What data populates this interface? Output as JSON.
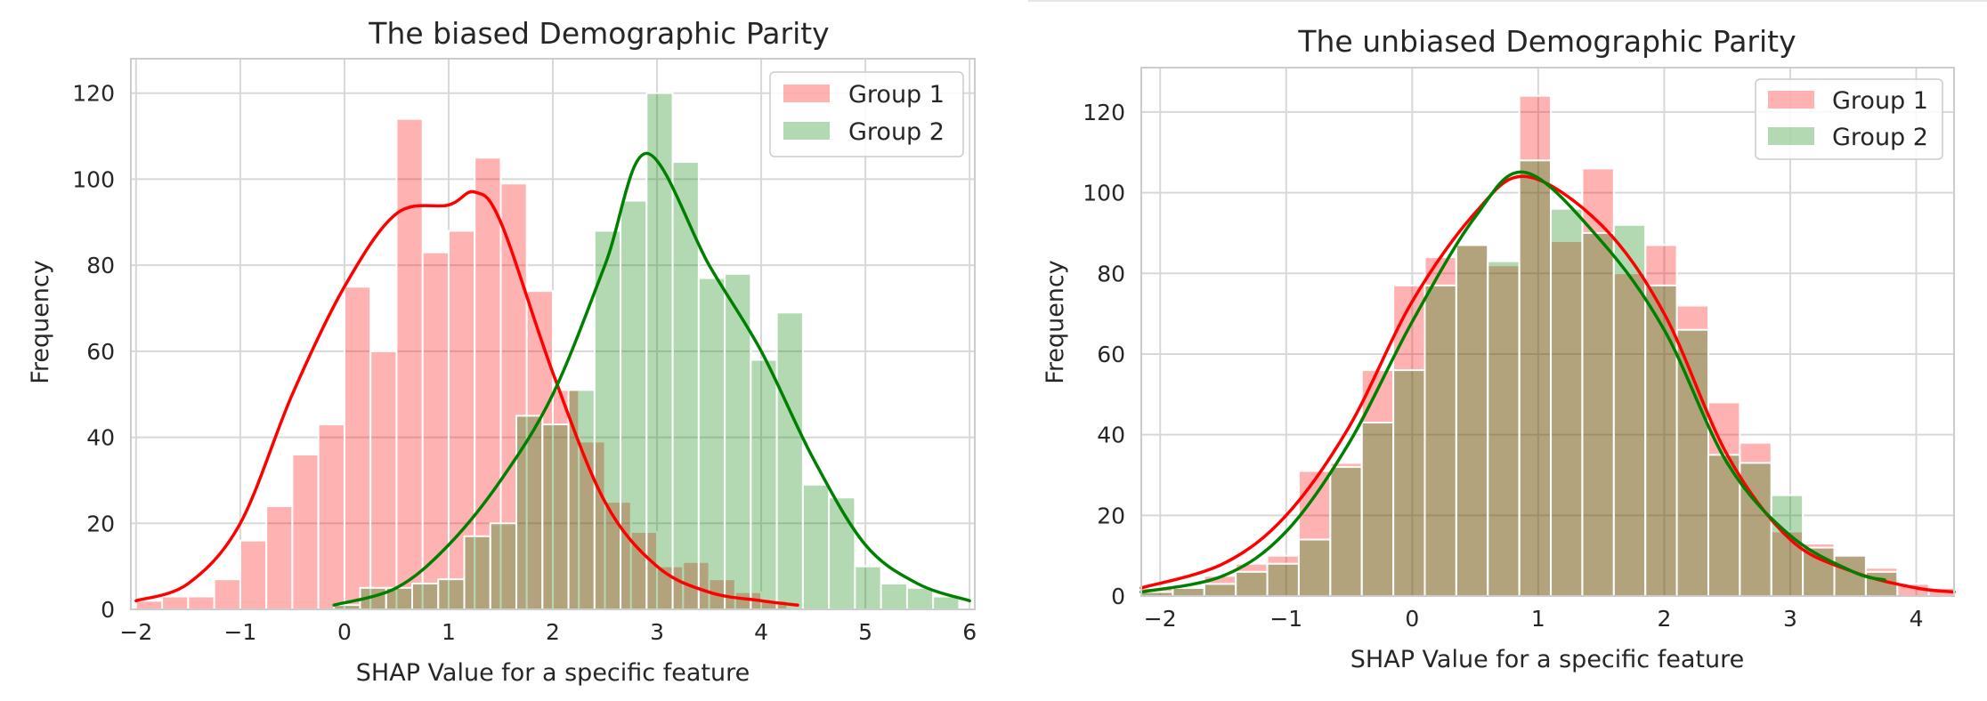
{
  "colors": {
    "group1": "#ff0000",
    "group2": "#008000",
    "group1_fill": "rgba(255,0,0,0.30)",
    "group2_fill": "rgba(0,128,0,0.30)",
    "grid": "#d8d8d8",
    "frame": "#cccccc"
  },
  "chart_data": [
    {
      "type": "histogram",
      "title": "The biased Demographic Parity",
      "xlabel": "SHAP Value for a specific feature",
      "ylabel": "Frequency",
      "xlim": [
        -2.05,
        6.05
      ],
      "ylim": [
        0,
        128
      ],
      "xticks": [
        -2,
        -1,
        0,
        1,
        2,
        3,
        4,
        5,
        6
      ],
      "yticks": [
        0,
        20,
        40,
        60,
        80,
        100,
        120
      ],
      "xtick_labels": [
        "−2",
        "−1",
        "0",
        "1",
        "2",
        "3",
        "4",
        "5",
        "6"
      ],
      "ytick_labels": [
        "0",
        "20",
        "40",
        "60",
        "80",
        "100",
        "120"
      ],
      "grid": true,
      "legend_position": "top-right",
      "bin_width": 0.25,
      "series": [
        {
          "name": "Group 1",
          "color": "#ff0000",
          "bin_starts": [
            -2.0,
            -1.75,
            -1.5,
            -1.25,
            -1.0,
            -0.75,
            -0.5,
            -0.25,
            0.0,
            0.25,
            0.5,
            0.75,
            1.0,
            1.25,
            1.5,
            1.75,
            2.0,
            2.25,
            2.5,
            2.75,
            3.0,
            3.25,
            3.5,
            3.75,
            4.0
          ],
          "counts": [
            2,
            3,
            3,
            7,
            16,
            24,
            36,
            43,
            75,
            60,
            114,
            83,
            88,
            105,
            99,
            74,
            51,
            39,
            25,
            18,
            10,
            11,
            7,
            4,
            2
          ],
          "kde_x": [
            -2.0,
            -1.5,
            -1.0,
            -0.5,
            0.0,
            0.5,
            1.0,
            1.25,
            1.5,
            2.0,
            2.5,
            3.0,
            3.5,
            4.0,
            4.35
          ],
          "kde_y": [
            2,
            6,
            20,
            50,
            75,
            92,
            94,
            97,
            90,
            55,
            25,
            10,
            4,
            2,
            1
          ]
        },
        {
          "name": "Group 2",
          "color": "#008000",
          "bin_starts": [
            -0.1,
            0.15,
            0.4,
            0.65,
            0.9,
            1.15,
            1.4,
            1.65,
            1.9,
            2.15,
            2.4,
            2.65,
            2.9,
            3.15,
            3.4,
            3.65,
            3.9,
            4.15,
            4.4,
            4.65,
            4.9,
            5.15,
            5.4,
            5.65
          ],
          "counts": [
            1,
            5,
            5,
            6,
            7,
            17,
            20,
            45,
            43,
            51,
            88,
            95,
            120,
            104,
            77,
            78,
            58,
            69,
            29,
            26,
            10,
            6,
            5,
            3
          ],
          "kde_x": [
            -0.1,
            0.5,
            1.0,
            1.5,
            2.0,
            2.5,
            2.9,
            3.5,
            4.0,
            4.5,
            5.0,
            5.5,
            6.0
          ],
          "kde_y": [
            1,
            5,
            15,
            30,
            50,
            80,
            106,
            80,
            60,
            35,
            15,
            6,
            2
          ]
        }
      ]
    },
    {
      "type": "histogram",
      "title": "The unbiased Demographic Parity",
      "xlabel": "SHAP Value for a specific feature",
      "ylabel": "Frequency",
      "xlim": [
        -2.15,
        4.3
      ],
      "ylim": [
        0,
        131
      ],
      "xticks": [
        -2,
        -1,
        0,
        1,
        2,
        3,
        4
      ],
      "yticks": [
        0,
        20,
        40,
        60,
        80,
        100,
        120
      ],
      "xtick_labels": [
        "−2",
        "−1",
        "0",
        "1",
        "2",
        "3",
        "4"
      ],
      "ytick_labels": [
        "0",
        "20",
        "40",
        "60",
        "80",
        "100",
        "120"
      ],
      "grid": true,
      "legend_position": "top-right",
      "bin_width": 0.25,
      "series": [
        {
          "name": "Group 1",
          "color": "#ff0000",
          "bin_starts": [
            -2.15,
            -1.9,
            -1.65,
            -1.4,
            -1.15,
            -0.9,
            -0.65,
            -0.4,
            -0.15,
            0.1,
            0.35,
            0.6,
            0.85,
            1.1,
            1.35,
            1.6,
            1.85,
            2.1,
            2.35,
            2.6,
            2.85,
            3.1,
            3.35,
            3.6,
            3.85,
            4.1
          ],
          "counts": [
            2,
            2,
            5,
            8,
            10,
            31,
            33,
            56,
            77,
            84,
            87,
            82,
            124,
            88,
            106,
            80,
            87,
            72,
            48,
            38,
            16,
            13,
            10,
            7,
            3,
            2
          ],
          "kde_x": [
            -2.15,
            -1.5,
            -1.0,
            -0.5,
            0.0,
            0.5,
            0.9,
            1.5,
            2.0,
            2.5,
            3.0,
            3.5,
            4.0,
            4.3
          ],
          "kde_y": [
            2,
            8,
            20,
            42,
            73,
            95,
            104,
            92,
            70,
            35,
            14,
            6,
            2,
            1
          ]
        },
        {
          "name": "Group 2",
          "color": "#008000",
          "bin_starts": [
            -2.15,
            -1.9,
            -1.65,
            -1.4,
            -1.15,
            -0.9,
            -0.65,
            -0.4,
            -0.15,
            0.1,
            0.35,
            0.6,
            0.85,
            1.1,
            1.35,
            1.6,
            1.85,
            2.1,
            2.35,
            2.6,
            2.85,
            3.1,
            3.35,
            3.6
          ],
          "counts": [
            1,
            2,
            3,
            6,
            8,
            14,
            32,
            43,
            56,
            77,
            87,
            83,
            108,
            96,
            90,
            92,
            77,
            66,
            35,
            33,
            25,
            12,
            10,
            6
          ],
          "kde_x": [
            -2.15,
            -1.5,
            -1.0,
            -0.5,
            0.0,
            0.5,
            0.9,
            1.5,
            2.0,
            2.5,
            3.0,
            3.5,
            3.75
          ],
          "kde_y": [
            1,
            5,
            16,
            38,
            68,
            94,
            105,
            88,
            66,
            33,
            15,
            6,
            4
          ]
        }
      ]
    }
  ]
}
